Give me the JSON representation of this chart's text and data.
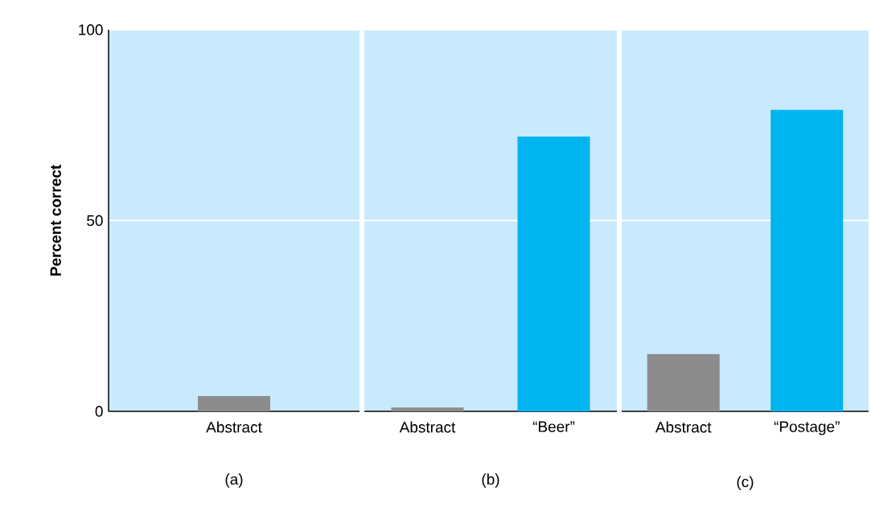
{
  "chart_data": [
    {
      "type": "bar",
      "categories": [
        "Abstract"
      ],
      "values": [
        4
      ],
      "colors": [
        "#8c8c8c"
      ],
      "xlabel": "(a)",
      "ylabel": "Percent correct",
      "ylim": [
        0,
        100
      ],
      "yticks": [
        0,
        50,
        100
      ],
      "grid": "y"
    },
    {
      "type": "bar",
      "categories": [
        "Abstract",
        "“Beer”"
      ],
      "values": [
        1,
        72
      ],
      "colors": [
        "#8c8c8c",
        "#00b4f0"
      ],
      "xlabel": "(b)",
      "ylim": [
        0,
        100
      ],
      "yticks": [
        0,
        50,
        100
      ],
      "grid": "y",
      "tick_labels": "x"
    },
    {
      "type": "bar",
      "categories": [
        "Abstract",
        "“Postage”"
      ],
      "values": [
        15,
        79
      ],
      "colors": [
        "#8c8c8c",
        "#00b4f0"
      ],
      "xlabel": "(c)",
      "ylim": [
        0,
        100
      ],
      "yticks": [
        0,
        50,
        100
      ],
      "grid": "y",
      "tick_labels": "x"
    }
  ]
}
